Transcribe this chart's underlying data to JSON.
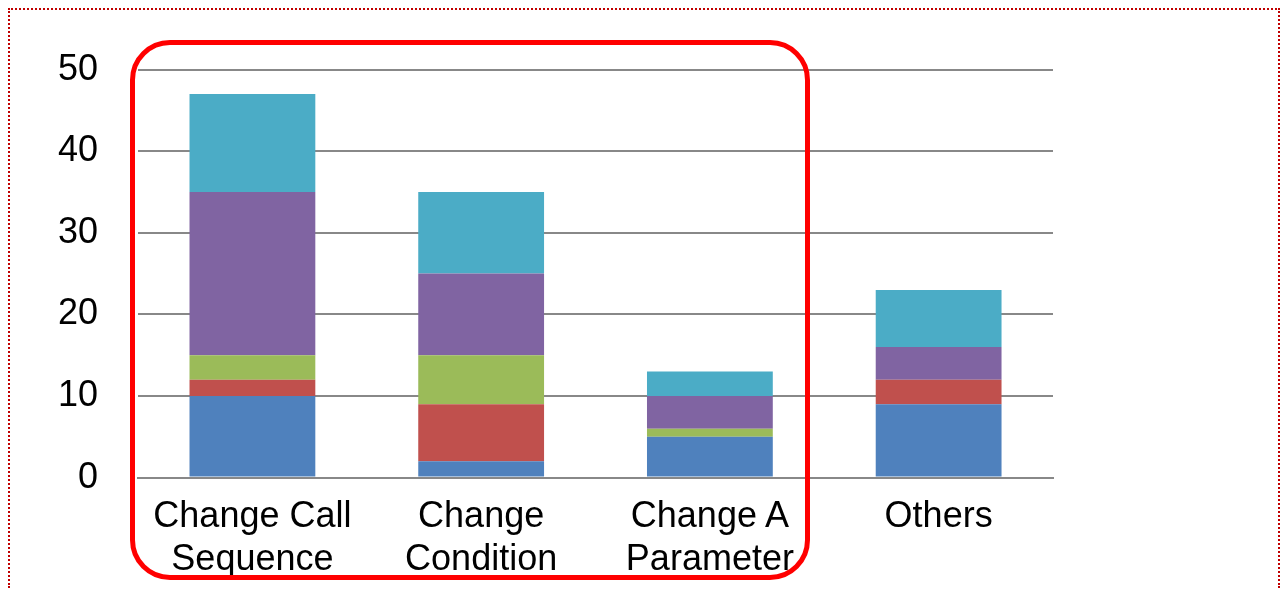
{
  "chart_data": {
    "type": "bar",
    "stacked": true,
    "categories": [
      "Change Call Sequence",
      "Change Condition",
      "Change A Parameter",
      "Others"
    ],
    "series": [
      {
        "color": "#4f81bd",
        "values": [
          10,
          2,
          5,
          9
        ]
      },
      {
        "color": "#c0504d",
        "values": [
          2,
          7,
          0,
          3
        ]
      },
      {
        "color": "#9bbb59",
        "values": [
          3,
          6,
          1,
          0
        ]
      },
      {
        "color": "#8064a2",
        "values": [
          20,
          10,
          4,
          4
        ]
      },
      {
        "color": "#4bacc6",
        "values": [
          12,
          10,
          3,
          7
        ]
      }
    ],
    "ylim": [
      0,
      50
    ],
    "yticks": [
      0,
      10,
      20,
      30,
      40,
      50
    ],
    "grid": "y"
  }
}
